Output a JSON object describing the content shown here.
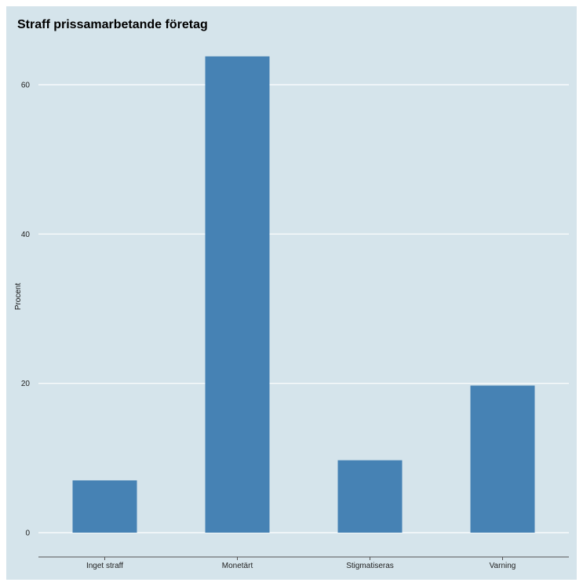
{
  "chart_data": {
    "type": "bar",
    "title": "Straff prissamarbetande företag",
    "xlabel": "",
    "ylabel": "Procent",
    "categories": [
      "Inget straff",
      "Monetärt",
      "Stigmatiseras",
      "Varning"
    ],
    "values": [
      7.0,
      63.8,
      9.7,
      19.7
    ],
    "ylim": [
      0,
      65
    ],
    "yticks": [
      0,
      20,
      40,
      60
    ],
    "grid": true,
    "colors": {
      "bar": "#4682b4",
      "background": "#d5e4eb",
      "gridline": "#ffffff",
      "axis": "#555555"
    }
  }
}
